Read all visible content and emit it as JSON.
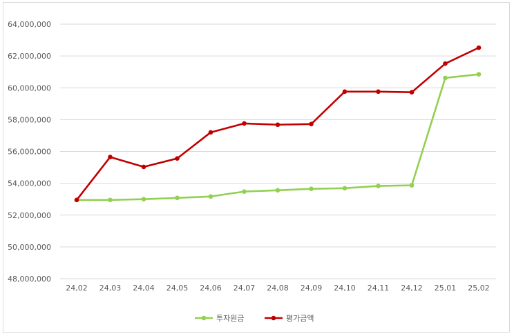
{
  "chart_data": {
    "type": "line",
    "categories": [
      "24,02",
      "24,03",
      "24,04",
      "24,05",
      "24,06",
      "24,07",
      "24,08",
      "24,09",
      "24,10",
      "24,11",
      "24,12",
      "25,01",
      "25,02"
    ],
    "ylim": [
      48000000,
      64000000
    ],
    "ytick_step": 2000000,
    "ytick_labels": [
      "48,000,000",
      "50,000,000",
      "52,000,000",
      "54,000,000",
      "56,000,000",
      "58,000,000",
      "60,000,000",
      "62,000,000",
      "64,000,000"
    ],
    "grid": true,
    "legend_position": "bottom",
    "series": [
      {
        "name": "투자원금",
        "color": "#92d050",
        "values": [
          52950000,
          52950000,
          53000000,
          53080000,
          53170000,
          53480000,
          53560000,
          53650000,
          53690000,
          53830000,
          53870000,
          60620000,
          60850000
        ]
      },
      {
        "name": "평가금액",
        "color": "#c00000",
        "values": [
          52950000,
          55650000,
          55030000,
          55560000,
          57200000,
          57760000,
          57680000,
          57720000,
          59760000,
          59760000,
          59720000,
          61520000,
          62520000
        ]
      }
    ]
  }
}
